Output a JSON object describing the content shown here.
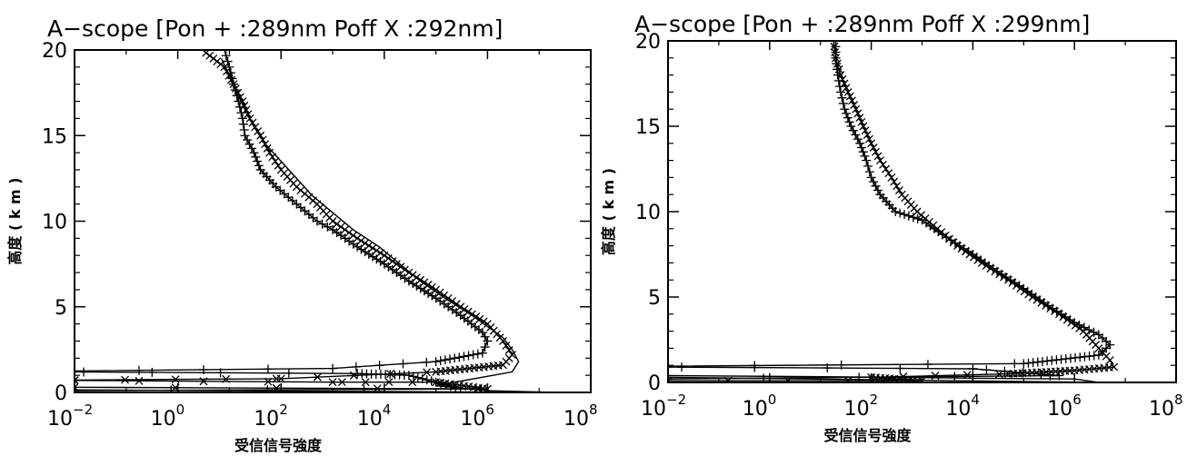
{
  "chart_data": [
    {
      "type": "line",
      "title": "A−scope [Pon + :289nm Poff X :292nm]",
      "xlabel": "受信信号強度",
      "ylabel": "高度 ( k m )",
      "xscale": "log",
      "xlim": [
        0.01,
        100000000
      ],
      "ylim": [
        0,
        20
      ],
      "x_ticks": [
        {
          "base": "10",
          "exp": "−2"
        },
        {
          "base": "10",
          "exp": "0"
        },
        {
          "base": "10",
          "exp": "2"
        },
        {
          "base": "10",
          "exp": "4"
        },
        {
          "base": "10",
          "exp": "6"
        },
        {
          "base": "10",
          "exp": "8"
        }
      ],
      "y_ticks": [
        "0",
        "5",
        "10",
        "15",
        "20"
      ],
      "grid": false,
      "series": [
        {
          "marker": "plus",
          "points": [
            [
              0.01,
              0.1
            ],
            [
              300000,
              0.2
            ],
            [
              100000,
              0.6
            ],
            [
              30000,
              1.0
            ],
            [
              3000,
              1.1
            ],
            [
              0.01,
              1.2
            ],
            [
              0.01,
              1.25
            ],
            [
              1000,
              1.4
            ],
            [
              100000,
              1.8
            ],
            [
              800000,
              2.3
            ],
            [
              1000000,
              3
            ],
            [
              800000,
              3.5
            ],
            [
              300000,
              4.5
            ],
            [
              100000,
              5.5
            ],
            [
              30000,
              6.5
            ],
            [
              10000,
              7.5
            ],
            [
              3000,
              8.5
            ],
            [
              1000,
              9.5
            ],
            [
              500,
              10
            ],
            [
              200,
              11
            ],
            [
              80,
              12
            ],
            [
              40,
              13
            ],
            [
              30,
              14
            ],
            [
              20,
              15
            ],
            [
              18,
              16
            ],
            [
              15,
              17
            ],
            [
              12,
              18
            ],
            [
              10,
              19
            ],
            [
              8,
              20
            ]
          ]
        },
        {
          "marker": "cross",
          "points": [
            [
              0.01,
              0.3
            ],
            [
              1000000,
              0.2
            ],
            [
              100000,
              0.6
            ],
            [
              1000,
              0.6
            ],
            [
              0.01,
              0.7
            ],
            [
              0.01,
              0.72
            ],
            [
              100,
              0.8
            ],
            [
              100000,
              1.2
            ],
            [
              2000000,
              1.6
            ],
            [
              3000000,
              2.2
            ],
            [
              2000000,
              3
            ],
            [
              1000000,
              4
            ],
            [
              300000,
              5
            ],
            [
              100000,
              6
            ],
            [
              30000,
              7
            ],
            [
              10000,
              8
            ],
            [
              3000,
              9
            ],
            [
              1000,
              10
            ],
            [
              500,
              11
            ],
            [
              200,
              12
            ],
            [
              100,
              13
            ],
            [
              60,
              14
            ],
            [
              40,
              15
            ],
            [
              25,
              16
            ],
            [
              18,
              17
            ],
            [
              12,
              18
            ],
            [
              8,
              19
            ],
            [
              3,
              20
            ]
          ]
        },
        {
          "marker": "none",
          "points": [
            [
              0.01,
              0.15
            ],
            [
              20000000,
              0
            ],
            [
              1000000,
              0.1
            ],
            [
              100000,
              0.4
            ],
            [
              3000000,
              1.2
            ],
            [
              4000000,
              1.8
            ],
            [
              3000000,
              2.5
            ],
            [
              2000000,
              3.2
            ],
            [
              500000,
              4.5
            ],
            [
              150000,
              5.5
            ],
            [
              50000,
              6.5
            ],
            [
              20000,
              7.5
            ],
            [
              8000,
              8.5
            ],
            [
              2500,
              9.5
            ],
            [
              1000,
              10.5
            ],
            [
              400,
              11.5
            ],
            [
              200,
              12.5
            ],
            [
              100,
              13.5
            ],
            [
              50,
              14.5
            ],
            [
              30,
              15.5
            ],
            [
              20,
              16.5
            ],
            [
              14,
              17.5
            ],
            [
              10,
              18.5
            ],
            [
              7,
              19.5
            ]
          ]
        }
      ]
    },
    {
      "type": "line",
      "title": "A−scope [Pon + :289nm Poff X :299nm]",
      "xlabel": "受信信号強度",
      "ylabel": "高度 ( k m )",
      "xscale": "log",
      "xlim": [
        0.01,
        100000000
      ],
      "ylim": [
        0,
        20
      ],
      "x_ticks": [
        {
          "base": "10",
          "exp": "−2"
        },
        {
          "base": "10",
          "exp": "0"
        },
        {
          "base": "10",
          "exp": "2"
        },
        {
          "base": "10",
          "exp": "4"
        },
        {
          "base": "10",
          "exp": "6"
        },
        {
          "base": "10",
          "exp": "8"
        }
      ],
      "y_ticks": [
        "0",
        "5",
        "10",
        "15",
        "20"
      ],
      "grid": false,
      "series": [
        {
          "marker": "plus",
          "points": [
            [
              0.01,
              0.2
            ],
            [
              500000,
              0.4
            ],
            [
              10000,
              0.8
            ],
            [
              0.01,
              0.9
            ],
            [
              0.01,
              0.95
            ],
            [
              100000,
              1.1
            ],
            [
              3000000,
              1.6
            ],
            [
              5000000,
              2.2
            ],
            [
              3000000,
              2.8
            ],
            [
              1000000,
              3.5
            ],
            [
              300000,
              4.5
            ],
            [
              100000,
              5.5
            ],
            [
              30000,
              6.5
            ],
            [
              10000,
              7.5
            ],
            [
              3000,
              8.5
            ],
            [
              1000,
              9.5
            ],
            [
              300,
              10
            ],
            [
              150,
              11
            ],
            [
              100,
              12
            ],
            [
              80,
              13
            ],
            [
              60,
              14
            ],
            [
              40,
              15
            ],
            [
              30,
              16
            ],
            [
              25,
              17
            ],
            [
              22,
              18
            ],
            [
              20,
              19
            ],
            [
              20,
              20
            ]
          ]
        },
        {
          "marker": "cross",
          "points": [
            [
              0.01,
              0.1
            ],
            [
              1000,
              0.1
            ],
            [
              100,
              0.3
            ],
            [
              50000,
              0.5
            ],
            [
              1000000,
              0.7
            ],
            [
              6000000,
              0.9
            ],
            [
              5000000,
              1.3
            ],
            [
              3000000,
              2
            ],
            [
              1500000,
              3
            ],
            [
              500000,
              4
            ],
            [
              150000,
              5
            ],
            [
              50000,
              6
            ],
            [
              15000,
              7
            ],
            [
              5000,
              8
            ],
            [
              2000,
              9
            ],
            [
              800,
              10
            ],
            [
              400,
              11
            ],
            [
              250,
              12
            ],
            [
              150,
              13
            ],
            [
              100,
              14
            ],
            [
              70,
              15
            ],
            [
              50,
              16
            ],
            [
              35,
              17
            ],
            [
              25,
              18
            ],
            [
              20,
              19
            ],
            [
              18,
              20
            ]
          ]
        },
        {
          "marker": "none",
          "points": [
            [
              0.01,
              0.3
            ],
            [
              3000000,
              0
            ],
            [
              1000000,
              0.2
            ],
            [
              8000,
              0.25
            ],
            [
              500,
              0.3
            ],
            [
              0.01,
              0.4
            ]
          ]
        }
      ]
    }
  ]
}
